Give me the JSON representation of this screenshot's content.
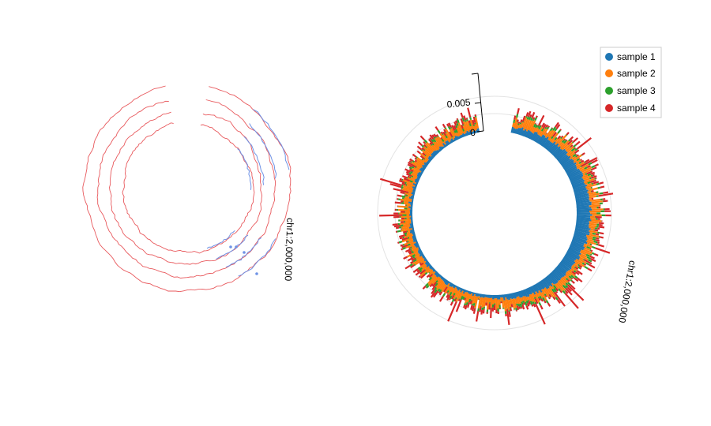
{
  "chart_data": [
    {
      "type": "line",
      "layout": "circular",
      "title": "",
      "chromosome_label": "chr1:2,000,000",
      "track_count": 4,
      "colors": {
        "line": "#e8595d",
        "highlight": "#6f93e6"
      },
      "grid": false
    },
    {
      "type": "bar",
      "layout": "circular",
      "stacked": true,
      "title": "",
      "chromosome_label": "chr1:2,000,000",
      "y_ticks": [
        "0",
        "0.005"
      ],
      "ylim": [
        0,
        0.008
      ],
      "grid": true,
      "legend_position": "top-right",
      "series": [
        {
          "name": "sample 1",
          "color": "#1f77b4"
        },
        {
          "name": "sample 2",
          "color": "#ff7f0e"
        },
        {
          "name": "sample 3",
          "color": "#2ca02c"
        },
        {
          "name": "sample 4",
          "color": "#d62728"
        }
      ]
    }
  ]
}
